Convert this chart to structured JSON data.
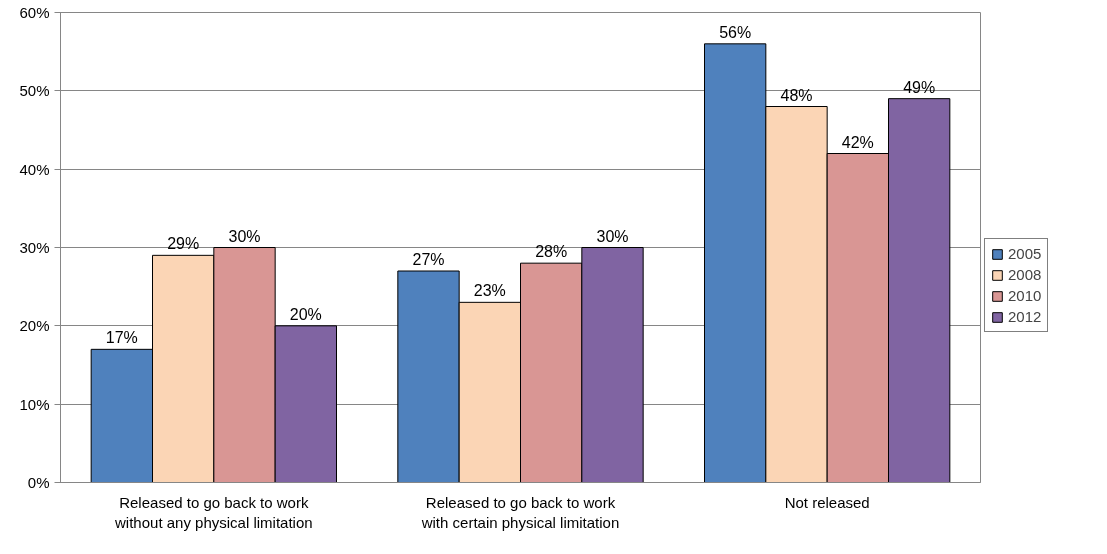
{
  "chart_data": {
    "type": "bar",
    "categories": [
      "Released to go back to work\nwithout any physical limitation",
      "Released to go back to work\nwith certain physical limitation",
      "Not released"
    ],
    "series": [
      {
        "name": "2005",
        "color": "#4f81bd",
        "values": [
          17,
          27,
          56
        ],
        "value_labels": [
          "17%",
          "27%",
          "56%"
        ]
      },
      {
        "name": "2008",
        "color": "#fbd5b5",
        "values": [
          29,
          23,
          48
        ],
        "value_labels": [
          "29%",
          "23%",
          "48%"
        ]
      },
      {
        "name": "2010",
        "color": "#d99694",
        "values": [
          30,
          28,
          42
        ],
        "value_labels": [
          "30%",
          "28%",
          "42%"
        ]
      },
      {
        "name": "2012",
        "color": "#8064a2",
        "values": [
          20,
          30,
          49
        ],
        "value_labels": [
          "20%",
          "30%",
          "49%"
        ]
      }
    ],
    "ylim": [
      0,
      60
    ],
    "yticks": [
      {
        "value": 0,
        "label": "0%"
      },
      {
        "value": 10,
        "label": "10%"
      },
      {
        "value": 20,
        "label": "20%"
      },
      {
        "value": 30,
        "label": "30%"
      },
      {
        "value": 40,
        "label": "40%"
      },
      {
        "value": 50,
        "label": "50%"
      },
      {
        "value": 60,
        "label": "60%"
      }
    ],
    "grid": "y",
    "legend": "right"
  }
}
